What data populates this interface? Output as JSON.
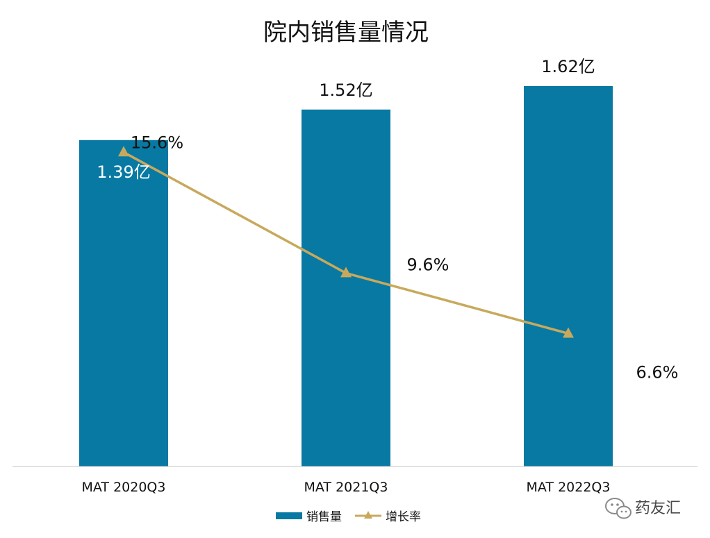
{
  "chart_data": {
    "type": "bar",
    "title": "院内销售量情况",
    "categories": [
      "MAT 2020Q3",
      "MAT 2021Q3",
      "MAT 2022Q3"
    ],
    "series": [
      {
        "name": "销售量",
        "kind": "bar",
        "axis": "left",
        "values": [
          1.39,
          1.52,
          1.62
        ],
        "labels": [
          "1.39亿",
          "1.52亿",
          "1.62亿"
        ],
        "color": "#0779A3"
      },
      {
        "name": "增长率",
        "kind": "line",
        "axis": "right",
        "marker": "triangle",
        "values": [
          15.6,
          9.6,
          6.6
        ],
        "labels": [
          "15.6%",
          "9.6%",
          "6.6%"
        ],
        "color": "#C8A95C"
      }
    ],
    "y_left": {
      "range": [
        0,
        1.75
      ],
      "unit": "亿"
    },
    "y_right": {
      "range": [
        0,
        20.4
      ],
      "unit": "%"
    },
    "grid": false,
    "legend": "bottom"
  },
  "watermark": {
    "text": "药友汇",
    "icon": "wechat-icon"
  },
  "colors": {
    "axis": "#D0D0D0",
    "text": "#111111",
    "label_on_bar": "#ffffff"
  }
}
